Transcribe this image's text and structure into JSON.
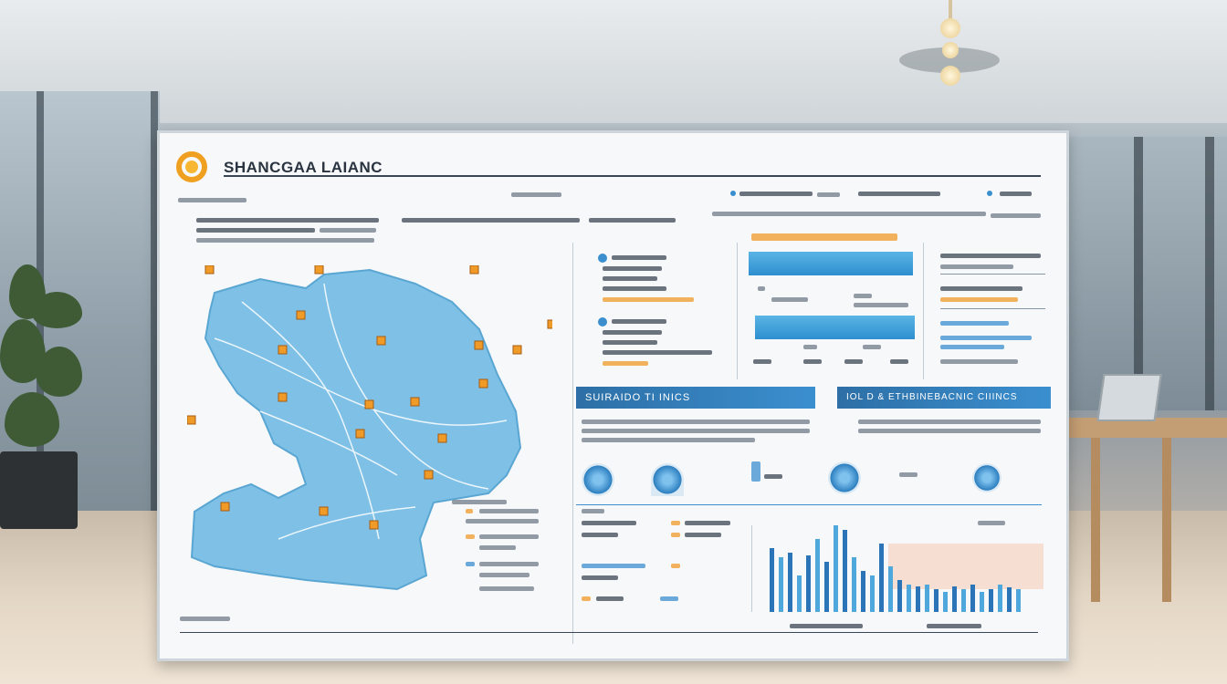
{
  "board": {
    "title": "SHANCGAA LAIANC",
    "section_left_banner": "SUIRAIDO TI INICS",
    "section_right_banner": "IOL D & ETHBINEBACNIC CIIINCS"
  },
  "colors": {
    "accent_orange": "#f09a28",
    "accent_blue": "#3b8fcf",
    "map_blue": "#7ec0e6",
    "banner_blue": "#2d6fa6"
  },
  "icons": [
    "logo-ring-icon",
    "map-pin-icon",
    "chart-icon"
  ]
}
